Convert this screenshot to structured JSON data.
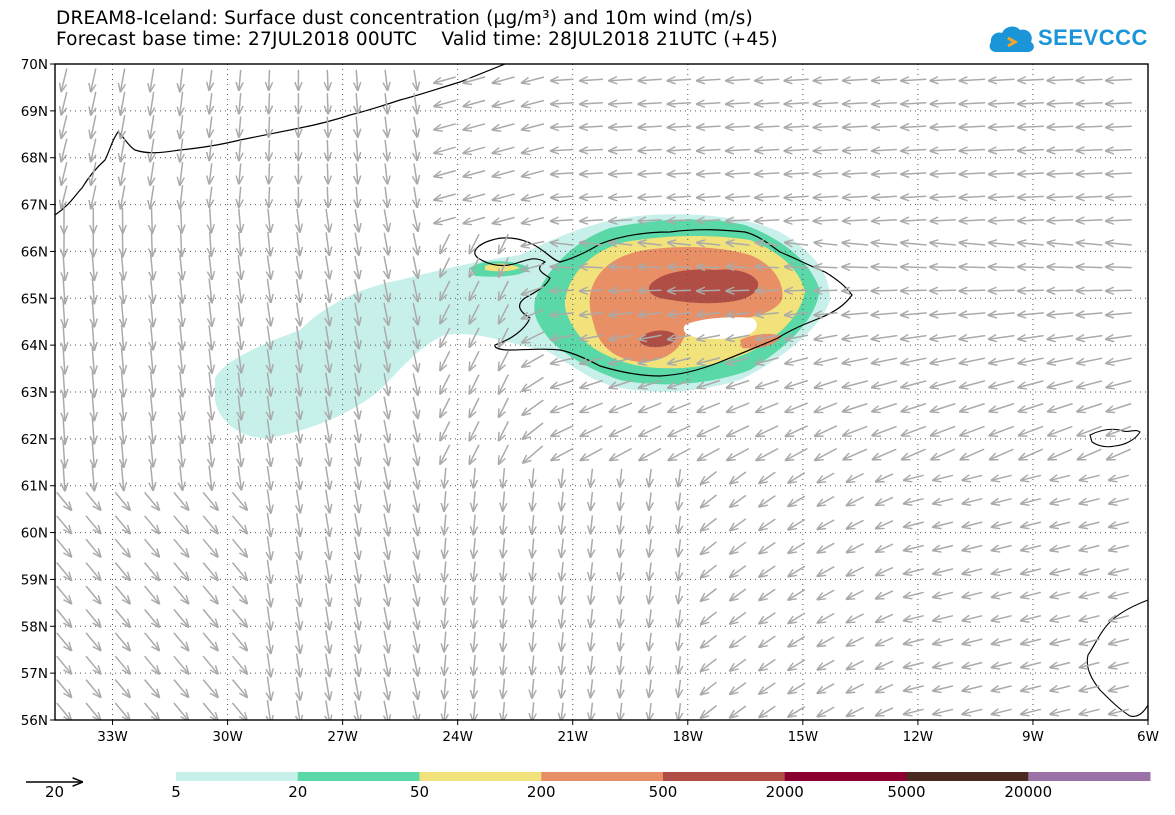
{
  "header": {
    "title_line1": "DREAM8-Iceland: Surface dust concentration (µg/m³) and 10m wind (m/s)",
    "title_line2": "Forecast base time: 27JUL2018 00UTC    Valid time: 28JUL2018 21UTC (+45)"
  },
  "logo": {
    "text": "SEEVCCC",
    "icon": "cloud-arrow-icon",
    "color": "#1a96d8"
  },
  "map": {
    "lat_labels": [
      "70N",
      "69N",
      "68N",
      "67N",
      "66N",
      "65N",
      "64N",
      "63N",
      "62N",
      "61N",
      "60N",
      "59N",
      "58N",
      "57N",
      "56N"
    ],
    "lon_labels": [
      "33W",
      "30W",
      "27W",
      "24W",
      "21W",
      "18W",
      "15W",
      "12W",
      "9W",
      "6W"
    ],
    "lat_range": [
      56,
      70
    ],
    "lon_range": [
      -34.5,
      -6
    ],
    "grid": true,
    "vector_color": "#aaaaaa"
  },
  "legend": {
    "wind_reference": "20",
    "color_bins": [
      {
        "color": "#c8f0ea"
      },
      {
        "color": "#5ad8a8"
      },
      {
        "color": "#f2e27c"
      },
      {
        "color": "#e88f66"
      },
      {
        "color": "#b04e46"
      },
      {
        "color": "#8a0030"
      },
      {
        "color": "#4a2a1e"
      },
      {
        "color": "#9a72a8"
      }
    ],
    "labels": [
      "5",
      "20",
      "50",
      "200",
      "500",
      "2000",
      "5000",
      "20000"
    ]
  }
}
